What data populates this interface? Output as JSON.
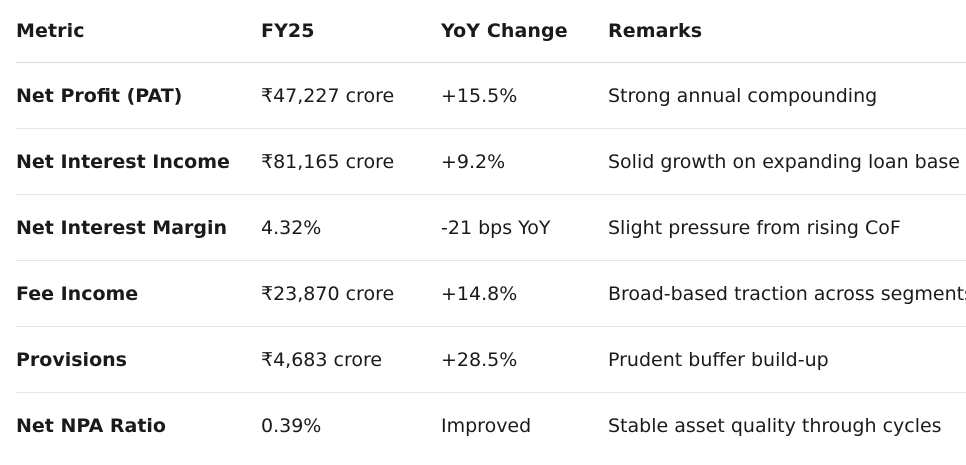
{
  "table": {
    "headers": [
      "Metric",
      "FY25",
      "YoY Change",
      "Remarks"
    ],
    "rows": [
      {
        "metric": "Net Profit (PAT)",
        "fy25": "₹47,227 crore",
        "yoy": "+15.5%",
        "remarks": "Strong annual compounding"
      },
      {
        "metric": "Net Interest Income",
        "fy25": "₹81,165 crore",
        "yoy": "+9.2%",
        "remarks": "Solid growth on expanding loan base"
      },
      {
        "metric": "Net Interest Margin",
        "fy25": "4.32%",
        "yoy": "-21 bps YoY",
        "remarks": "Slight pressure from rising CoF"
      },
      {
        "metric": "Fee Income",
        "fy25": "₹23,870 crore",
        "yoy": "+14.8%",
        "remarks": "Broad-based traction across segments"
      },
      {
        "metric": "Provisions",
        "fy25": "₹4,683 crore",
        "yoy": "+28.5%",
        "remarks": "Prudent buffer build-up"
      },
      {
        "metric": "Net NPA Ratio",
        "fy25": "0.39%",
        "yoy": "Improved",
        "remarks": "Stable asset quality through cycles"
      }
    ]
  }
}
